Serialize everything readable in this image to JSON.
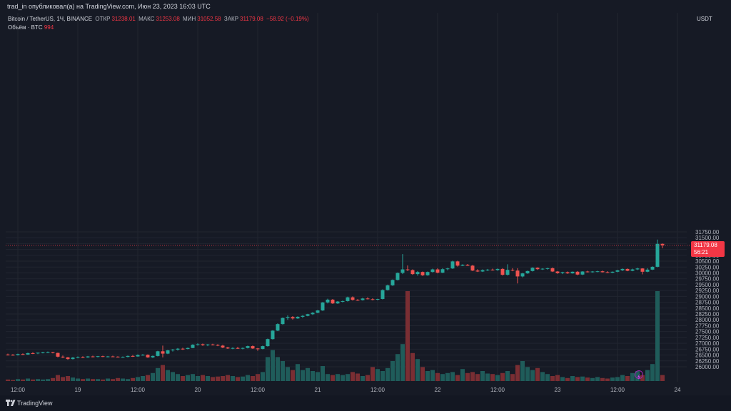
{
  "header": {
    "published_line": "trad_in опубликовал(а) на TradingView.com, Июн 23, 2023 16:03 UTC",
    "symbol": "Bitcoin / TetherUS, 1Ч, BINANCE",
    "open_label": "ОТКР",
    "open_value": "31238.01",
    "high_label": "МАКС",
    "high_value": "31253.08",
    "low_label": "МИН",
    "low_value": "31052.58",
    "close_label": "ЗАКР",
    "close_value": "31179.08",
    "change": "−58.92 (−0.19%)",
    "volume_label": "Объём · BTC",
    "volume_value": "994"
  },
  "currency": "USDT",
  "last_price": {
    "price": "31179.08",
    "countdown": "56:21"
  },
  "footer": {
    "brand": "TradingView"
  },
  "colors": {
    "up": "#26a69a",
    "down": "#ef5350",
    "vol_up": "#1f5c5a",
    "vol_down": "#7a2e33",
    "bg": "#161a25",
    "grid": "#212530",
    "text": "#b2b5be"
  },
  "chart_data": {
    "type": "candlestick",
    "ylim": [
      25750,
      31900
    ],
    "y_ticks": [
      26000,
      26250,
      26500,
      26750,
      27000,
      27250,
      27500,
      27750,
      28000,
      28250,
      28500,
      28750,
      29000,
      29250,
      29500,
      29750,
      30000,
      30250,
      30500,
      30750,
      31000,
      31250,
      31500,
      31750
    ],
    "y_tick_labels": [
      "26000.00",
      "26250.00",
      "26500.00",
      "26750.00",
      "27000.00",
      "27250.00",
      "27500.00",
      "27750.00",
      "28000.00",
      "28250.00",
      "28500.00",
      "28750.00",
      "29000.00",
      "29250.00",
      "29500.00",
      "29750.00",
      "30000.00",
      "30250.00",
      "30500.00",
      "30750.00",
      "31000.00",
      "31250.00",
      "31500.00",
      "31750.00"
    ],
    "x_tick_labels": [
      "12:00",
      "19",
      "12:00",
      "20",
      "12:00",
      "21",
      "12:00",
      "22",
      "12:00",
      "23",
      "12:00",
      "24"
    ],
    "x_tick_index": [
      2,
      14,
      26,
      38,
      50,
      62,
      74,
      86,
      98,
      110,
      122,
      134
    ],
    "price_line": 31179.08,
    "candles": [
      [
        26520,
        26560,
        26480,
        26510
      ],
      [
        26510,
        26540,
        26470,
        26500
      ],
      [
        26500,
        26560,
        26480,
        26540
      ],
      [
        26540,
        26570,
        26500,
        26520
      ],
      [
        26520,
        26600,
        26510,
        26580
      ],
      [
        26580,
        26620,
        26540,
        26570
      ],
      [
        26570,
        26610,
        26540,
        26600
      ],
      [
        26600,
        26640,
        26570,
        26610
      ],
      [
        26610,
        26650,
        26580,
        26620
      ],
      [
        26620,
        26640,
        26570,
        26590
      ],
      [
        26590,
        26600,
        26400,
        26430
      ],
      [
        26430,
        26480,
        26370,
        26400
      ],
      [
        26400,
        26420,
        26300,
        26330
      ],
      [
        26330,
        26420,
        26310,
        26390
      ],
      [
        26390,
        26440,
        26360,
        26410
      ],
      [
        26410,
        26450,
        26370,
        26400
      ],
      [
        26400,
        26460,
        26380,
        26440
      ],
      [
        26440,
        26470,
        26400,
        26420
      ],
      [
        26420,
        26460,
        26400,
        26450
      ],
      [
        26450,
        26470,
        26410,
        26420
      ],
      [
        26420,
        26460,
        26400,
        26440
      ],
      [
        26440,
        26470,
        26410,
        26430
      ],
      [
        26430,
        26450,
        26390,
        26410
      ],
      [
        26410,
        26440,
        26380,
        26420
      ],
      [
        26420,
        26480,
        26400,
        26460
      ],
      [
        26460,
        26500,
        26420,
        26440
      ],
      [
        26440,
        26530,
        26430,
        26500
      ],
      [
        26500,
        26540,
        26470,
        26510
      ],
      [
        26510,
        26530,
        26380,
        26400
      ],
      [
        26400,
        26480,
        26370,
        26460
      ],
      [
        26460,
        26680,
        26440,
        26660
      ],
      [
        26660,
        26900,
        26400,
        26560
      ],
      [
        26560,
        26720,
        26540,
        26700
      ],
      [
        26700,
        26760,
        26650,
        26730
      ],
      [
        26730,
        26800,
        26690,
        26770
      ],
      [
        26770,
        26810,
        26720,
        26760
      ],
      [
        26760,
        26820,
        26740,
        26800
      ],
      [
        26800,
        26960,
        26790,
        26940
      ],
      [
        26940,
        27000,
        26900,
        26960
      ],
      [
        26960,
        26990,
        26890,
        26920
      ],
      [
        26920,
        26970,
        26880,
        26950
      ],
      [
        26950,
        26980,
        26910,
        26930
      ],
      [
        26930,
        26960,
        26880,
        26900
      ],
      [
        26900,
        26940,
        26790,
        26820
      ],
      [
        26820,
        26850,
        26760,
        26780
      ],
      [
        26780,
        26830,
        26750,
        26800
      ],
      [
        26800,
        26850,
        26760,
        26770
      ],
      [
        26770,
        26820,
        26740,
        26800
      ],
      [
        26800,
        26900,
        26780,
        26880
      ],
      [
        26880,
        26910,
        26760,
        26780
      ],
      [
        26780,
        26800,
        26680,
        26760
      ],
      [
        26760,
        26900,
        26740,
        26880
      ],
      [
        26880,
        27200,
        26860,
        27180
      ],
      [
        27180,
        27560,
        27160,
        27540
      ],
      [
        27540,
        27850,
        27520,
        27820
      ],
      [
        27820,
        28100,
        27800,
        28080
      ],
      [
        28080,
        28190,
        28000,
        28120
      ],
      [
        28120,
        28160,
        28010,
        28060
      ],
      [
        28060,
        28150,
        28040,
        28130
      ],
      [
        28130,
        28200,
        28080,
        28170
      ],
      [
        28170,
        28260,
        28150,
        28240
      ],
      [
        28240,
        28330,
        28210,
        28300
      ],
      [
        28300,
        28420,
        28280,
        28400
      ],
      [
        28400,
        28760,
        28380,
        28740
      ],
      [
        28740,
        28900,
        28700,
        28860
      ],
      [
        28860,
        28890,
        28680,
        28700
      ],
      [
        28700,
        28800,
        28680,
        28780
      ],
      [
        28780,
        28820,
        28740,
        28800
      ],
      [
        28800,
        28990,
        28780,
        28960
      ],
      [
        28960,
        29000,
        28820,
        28850
      ],
      [
        28850,
        28880,
        28810,
        28840
      ],
      [
        28840,
        28940,
        28820,
        28910
      ],
      [
        28910,
        28960,
        28870,
        28880
      ],
      [
        28880,
        28920,
        28830,
        28860
      ],
      [
        28860,
        28900,
        28830,
        28890
      ],
      [
        28890,
        29300,
        28870,
        29270
      ],
      [
        29270,
        29500,
        29250,
        29470
      ],
      [
        29470,
        29720,
        29450,
        29700
      ],
      [
        29700,
        30020,
        29680,
        30000
      ],
      [
        30000,
        30800,
        29950,
        30150
      ],
      [
        30150,
        30320,
        30080,
        30120
      ],
      [
        30120,
        30150,
        29920,
        29950
      ],
      [
        29950,
        30080,
        29880,
        30040
      ],
      [
        30040,
        30060,
        29870,
        29900
      ],
      [
        29900,
        30060,
        29880,
        30040
      ],
      [
        30040,
        30180,
        30020,
        30150
      ],
      [
        30150,
        30200,
        29980,
        30010
      ],
      [
        30010,
        30200,
        29990,
        30160
      ],
      [
        30160,
        30220,
        30110,
        30190
      ],
      [
        30190,
        30520,
        30170,
        30490
      ],
      [
        30490,
        30520,
        30270,
        30310
      ],
      [
        30310,
        30370,
        30290,
        30350
      ],
      [
        30350,
        30380,
        30300,
        30310
      ],
      [
        30310,
        30340,
        30080,
        30100
      ],
      [
        30100,
        30160,
        30040,
        30060
      ],
      [
        30060,
        30150,
        30040,
        30120
      ],
      [
        30120,
        30170,
        30080,
        30140
      ],
      [
        30140,
        30180,
        30100,
        30120
      ],
      [
        30120,
        30190,
        30090,
        30170
      ],
      [
        30170,
        30200,
        29890,
        29920
      ],
      [
        29920,
        30370,
        29890,
        30130
      ],
      [
        30130,
        30200,
        30070,
        30100
      ],
      [
        30100,
        30200,
        29550,
        29850
      ],
      [
        29850,
        30000,
        29810,
        29980
      ],
      [
        29980,
        30100,
        29960,
        30080
      ],
      [
        30080,
        30240,
        30060,
        30220
      ],
      [
        30220,
        30240,
        30130,
        30160
      ],
      [
        30160,
        30200,
        30130,
        30180
      ],
      [
        30180,
        30220,
        30140,
        30200
      ],
      [
        30200,
        30230,
        30040,
        30060
      ],
      [
        30060,
        30080,
        29960,
        29990
      ],
      [
        29990,
        30050,
        29950,
        30030
      ],
      [
        30030,
        30060,
        29960,
        29980
      ],
      [
        29980,
        30060,
        29970,
        30050
      ],
      [
        30050,
        30080,
        29900,
        29930
      ],
      [
        29930,
        30070,
        29910,
        30060
      ],
      [
        30060,
        30090,
        30020,
        30040
      ],
      [
        30040,
        30080,
        30010,
        30060
      ],
      [
        30060,
        30090,
        30030,
        30070
      ],
      [
        30070,
        30100,
        30020,
        30030
      ],
      [
        30030,
        30070,
        29990,
        30010
      ],
      [
        30010,
        30060,
        29990,
        30050
      ],
      [
        30050,
        30130,
        30030,
        30110
      ],
      [
        30110,
        30190,
        30080,
        30170
      ],
      [
        30170,
        30190,
        30070,
        30090
      ],
      [
        30090,
        30180,
        30070,
        30150
      ],
      [
        30150,
        30220,
        30120,
        30190
      ],
      [
        30190,
        30200,
        29940,
        30050
      ],
      [
        30050,
        30200,
        30030,
        30140
      ],
      [
        30140,
        30280,
        30120,
        30260
      ],
      [
        30260,
        31420,
        30240,
        31238
      ],
      [
        31238,
        31253,
        31052,
        31179
      ]
    ],
    "volumes": [
      3,
      2,
      4,
      3,
      5,
      3,
      4,
      3,
      4,
      6,
      12,
      8,
      10,
      7,
      5,
      4,
      5,
      4,
      4,
      3,
      5,
      4,
      6,
      5,
      4,
      6,
      8,
      10,
      12,
      16,
      26,
      32,
      22,
      18,
      14,
      10,
      12,
      14,
      10,
      12,
      10,
      8,
      9,
      10,
      12,
      10,
      8,
      9,
      12,
      10,
      14,
      18,
      48,
      62,
      48,
      40,
      28,
      22,
      34,
      22,
      26,
      20,
      18,
      30,
      14,
      12,
      14,
      12,
      14,
      18,
      15,
      10,
      12,
      28,
      24,
      20,
      26,
      40,
      54,
      74,
      180,
      56,
      44,
      28,
      20,
      22,
      16,
      14,
      16,
      18,
      12,
      24,
      16,
      18,
      14,
      20,
      15,
      14,
      12,
      16,
      20,
      14,
      32,
      40,
      28,
      22,
      26,
      18,
      14,
      10,
      12,
      8,
      6,
      10,
      8,
      9,
      7,
      6,
      8,
      6,
      5,
      7,
      8,
      12,
      10,
      16,
      20,
      12,
      22,
      34,
      180,
      12
    ]
  }
}
